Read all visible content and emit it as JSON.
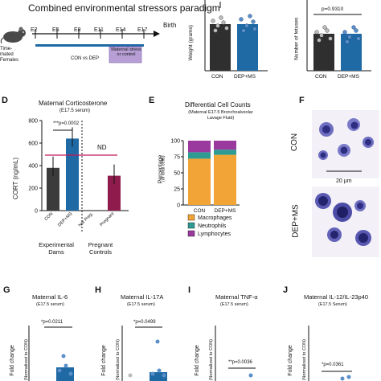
{
  "colors": {
    "con": "#3b3b3b",
    "dep": "#1f6aa5",
    "pregnant": "#8e1b4b",
    "pink": "#c2185b",
    "timeline_box": "#b79fd6",
    "macrophages": "#f2a436",
    "neutrophils": "#2e9c93",
    "lymphocytes": "#9b3a9e",
    "cell_stain": "#3d3d9a"
  },
  "panelA": {
    "title": "Combined environmental stressors paradigm",
    "mouse_label": "Time-mated Females",
    "days": [
      "E2",
      "E5",
      "E8",
      "E11",
      "E14",
      "E17"
    ],
    "birth": "Birth",
    "con_vs_dep": "CON vs DEP",
    "maternal_box": "Maternal stress or control"
  },
  "panelB": {
    "ylabel": "Weight (grams)",
    "categories": [
      "CON",
      "DEP+MS"
    ]
  },
  "panelC": {
    "ylabel": "Number of fetuses",
    "pval": "p=0.9310",
    "categories": [
      "CON",
      "DEP+MS"
    ]
  },
  "panelD": {
    "letter": "D",
    "title": "Maternal Corticosterone",
    "subtitle": "(E17.5 serum)",
    "ylabel": "CORT (ng/mL)",
    "pval": "***p=0.0002",
    "nd": "ND",
    "group1": "Experimental Dams",
    "group2": "Pregnant Controls"
  },
  "panelE": {
    "letter": "E",
    "title": "Differential Cell Counts",
    "subtitle": "(Maternal E17.5 Bronchoalveolar Lavage Fluid)",
    "ylabel": "Percentage",
    "ylabel2": "(of total cells)"
  },
  "panelF": {
    "letter": "F",
    "label_con": "CON",
    "label_dep": "DEP+MS",
    "scale": "20 µm"
  },
  "panelG": {
    "letter": "G",
    "title": "Maternal IL-6",
    "subtitle": "(E17.5 serum)",
    "pval": "*p=0.0211",
    "ylabel": "Fold change",
    "ylabel2": "(Normalized to CON)"
  },
  "panelH": {
    "letter": "H",
    "title": "Maternal IL-17A",
    "subtitle": "(E17.5 serum)",
    "pval": "*p=0.0499",
    "ylabel": "Fold change",
    "ylabel2": "(Normalized to CON)"
  },
  "panelI": {
    "letter": "I",
    "title": "Maternal TNF-α",
    "subtitle": "(E17.5 serum)",
    "pval": "**p=0.0036",
    "ylabel": "Fold change",
    "ylabel2": "(Normalized to CON)"
  },
  "panelJ": {
    "letter": "J",
    "title": "Maternal IL-12/IL-23p40",
    "subtitle": "(E17.5 Serum)",
    "pval": "*p=0.0361",
    "ylabel": "Fold change",
    "ylabel2": "(Normalized to CON)"
  },
  "chart_data": [
    {
      "type": "bar",
      "panel": "D",
      "title": "Maternal Corticosterone",
      "ylabel": "CORT (ng/mL)",
      "categories": [
        "CON",
        "DEP+MS",
        "Not Preg.",
        "Pregnant"
      ],
      "values": [
        380,
        640,
        0,
        310
      ],
      "ylim": [
        0,
        800
      ],
      "yticks": [
        0,
        200,
        400,
        600,
        800
      ],
      "annotations": [
        "***p=0.0002",
        "ND"
      ]
    },
    {
      "type": "bar",
      "panel": "E",
      "title": "Differential Cell Counts",
      "ylabel": "Percentage",
      "categories": [
        "CON",
        "DEP+MS"
      ],
      "stacked": true,
      "ylim": [
        0,
        100
      ],
      "yticks": [
        0,
        25,
        50,
        75,
        100
      ],
      "series": [
        {
          "name": "Macrophages",
          "values": [
            72,
            78
          ]
        },
        {
          "name": "Neutrophils",
          "values": [
            10,
            8
          ]
        },
        {
          "name": "Lymphocytes",
          "values": [
            18,
            14
          ]
        }
      ],
      "legend": "bottom"
    }
  ]
}
